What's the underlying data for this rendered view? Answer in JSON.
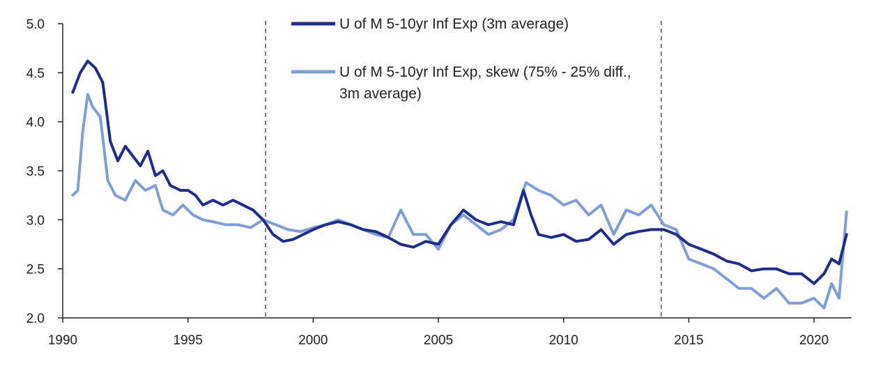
{
  "chart_data": {
    "type": "line",
    "title": "",
    "xlabel": "",
    "ylabel": "",
    "xlim": [
      1990,
      2021.5
    ],
    "ylim": [
      2.0,
      5.0
    ],
    "x_ticks": [
      1990,
      1995,
      2000,
      2005,
      2010,
      2015,
      2020
    ],
    "y_ticks": [
      "2.0",
      "2.5",
      "3.0",
      "3.5",
      "4.0",
      "4.5",
      "5.0"
    ],
    "grid": false,
    "legend_position": "top-center",
    "vertical_markers": [
      1998.1,
      2013.9
    ],
    "series": [
      {
        "name": "U of M 5-10yr Inf Exp (3m average)",
        "color": "#1f2d8a",
        "points": [
          [
            1990.4,
            4.3
          ],
          [
            1990.7,
            4.5
          ],
          [
            1991.0,
            4.62
          ],
          [
            1991.3,
            4.55
          ],
          [
            1991.6,
            4.4
          ],
          [
            1991.9,
            3.8
          ],
          [
            1992.2,
            3.6
          ],
          [
            1992.5,
            3.75
          ],
          [
            1992.8,
            3.65
          ],
          [
            1993.1,
            3.55
          ],
          [
            1993.4,
            3.7
          ],
          [
            1993.7,
            3.45
          ],
          [
            1994.0,
            3.5
          ],
          [
            1994.3,
            3.35
          ],
          [
            1994.7,
            3.3
          ],
          [
            1995.0,
            3.3
          ],
          [
            1995.3,
            3.25
          ],
          [
            1995.6,
            3.15
          ],
          [
            1996.0,
            3.2
          ],
          [
            1996.4,
            3.15
          ],
          [
            1996.8,
            3.2
          ],
          [
            1997.2,
            3.15
          ],
          [
            1997.6,
            3.1
          ],
          [
            1998.0,
            3.0
          ],
          [
            1998.4,
            2.85
          ],
          [
            1998.8,
            2.78
          ],
          [
            1999.2,
            2.8
          ],
          [
            1999.6,
            2.85
          ],
          [
            2000.0,
            2.9
          ],
          [
            2000.5,
            2.95
          ],
          [
            2001.0,
            2.98
          ],
          [
            2001.5,
            2.95
          ],
          [
            2002.0,
            2.9
          ],
          [
            2002.5,
            2.88
          ],
          [
            2003.0,
            2.82
          ],
          [
            2003.5,
            2.75
          ],
          [
            2004.0,
            2.72
          ],
          [
            2004.5,
            2.78
          ],
          [
            2005.0,
            2.75
          ],
          [
            2005.5,
            2.95
          ],
          [
            2006.0,
            3.1
          ],
          [
            2006.5,
            3.0
          ],
          [
            2007.0,
            2.95
          ],
          [
            2007.5,
            2.98
          ],
          [
            2008.0,
            2.95
          ],
          [
            2008.4,
            3.3
          ],
          [
            2008.7,
            3.05
          ],
          [
            2009.0,
            2.85
          ],
          [
            2009.5,
            2.82
          ],
          [
            2010.0,
            2.85
          ],
          [
            2010.5,
            2.78
          ],
          [
            2011.0,
            2.8
          ],
          [
            2011.5,
            2.9
          ],
          [
            2012.0,
            2.75
          ],
          [
            2012.5,
            2.85
          ],
          [
            2013.0,
            2.88
          ],
          [
            2013.5,
            2.9
          ],
          [
            2014.0,
            2.9
          ],
          [
            2014.5,
            2.85
          ],
          [
            2015.0,
            2.75
          ],
          [
            2015.5,
            2.7
          ],
          [
            2016.0,
            2.65
          ],
          [
            2016.5,
            2.58
          ],
          [
            2017.0,
            2.55
          ],
          [
            2017.5,
            2.48
          ],
          [
            2018.0,
            2.5
          ],
          [
            2018.5,
            2.5
          ],
          [
            2019.0,
            2.45
          ],
          [
            2019.5,
            2.45
          ],
          [
            2020.0,
            2.35
          ],
          [
            2020.4,
            2.45
          ],
          [
            2020.7,
            2.6
          ],
          [
            2021.0,
            2.55
          ],
          [
            2021.3,
            2.85
          ]
        ]
      },
      {
        "name": "U of M 5-10yr Inf Exp, skew (75% - 25% diff., 3m average)",
        "color": "#7f9fd6",
        "points": [
          [
            1990.4,
            3.25
          ],
          [
            1990.6,
            3.3
          ],
          [
            1990.8,
            3.9
          ],
          [
            1991.0,
            4.28
          ],
          [
            1991.2,
            4.15
          ],
          [
            1991.5,
            4.05
          ],
          [
            1991.8,
            3.4
          ],
          [
            1992.1,
            3.25
          ],
          [
            1992.5,
            3.2
          ],
          [
            1992.9,
            3.4
          ],
          [
            1993.3,
            3.3
          ],
          [
            1993.7,
            3.35
          ],
          [
            1994.0,
            3.1
          ],
          [
            1994.4,
            3.05
          ],
          [
            1994.8,
            3.15
          ],
          [
            1995.2,
            3.05
          ],
          [
            1995.6,
            3.0
          ],
          [
            1996.0,
            2.98
          ],
          [
            1996.5,
            2.95
          ],
          [
            1997.0,
            2.95
          ],
          [
            1997.5,
            2.92
          ],
          [
            1998.0,
            3.0
          ],
          [
            1998.5,
            2.95
          ],
          [
            1999.0,
            2.9
          ],
          [
            1999.5,
            2.88
          ],
          [
            2000.0,
            2.92
          ],
          [
            2000.5,
            2.95
          ],
          [
            2001.0,
            3.0
          ],
          [
            2001.5,
            2.95
          ],
          [
            2002.0,
            2.9
          ],
          [
            2002.5,
            2.85
          ],
          [
            2003.0,
            2.82
          ],
          [
            2003.5,
            3.1
          ],
          [
            2004.0,
            2.85
          ],
          [
            2004.5,
            2.85
          ],
          [
            2005.0,
            2.7
          ],
          [
            2005.5,
            2.95
          ],
          [
            2006.0,
            3.05
          ],
          [
            2006.5,
            2.95
          ],
          [
            2007.0,
            2.85
          ],
          [
            2007.5,
            2.9
          ],
          [
            2008.0,
            3.0
          ],
          [
            2008.5,
            3.38
          ],
          [
            2009.0,
            3.3
          ],
          [
            2009.5,
            3.25
          ],
          [
            2010.0,
            3.15
          ],
          [
            2010.5,
            3.2
          ],
          [
            2011.0,
            3.05
          ],
          [
            2011.5,
            3.15
          ],
          [
            2012.0,
            2.85
          ],
          [
            2012.5,
            3.1
          ],
          [
            2013.0,
            3.05
          ],
          [
            2013.5,
            3.15
          ],
          [
            2014.0,
            2.95
          ],
          [
            2014.5,
            2.9
          ],
          [
            2015.0,
            2.6
          ],
          [
            2015.5,
            2.55
          ],
          [
            2016.0,
            2.5
          ],
          [
            2016.5,
            2.4
          ],
          [
            2017.0,
            2.3
          ],
          [
            2017.5,
            2.3
          ],
          [
            2018.0,
            2.2
          ],
          [
            2018.5,
            2.3
          ],
          [
            2019.0,
            2.15
          ],
          [
            2019.5,
            2.15
          ],
          [
            2020.0,
            2.2
          ],
          [
            2020.4,
            2.1
          ],
          [
            2020.7,
            2.35
          ],
          [
            2021.0,
            2.2
          ],
          [
            2021.3,
            3.08
          ]
        ]
      }
    ]
  }
}
